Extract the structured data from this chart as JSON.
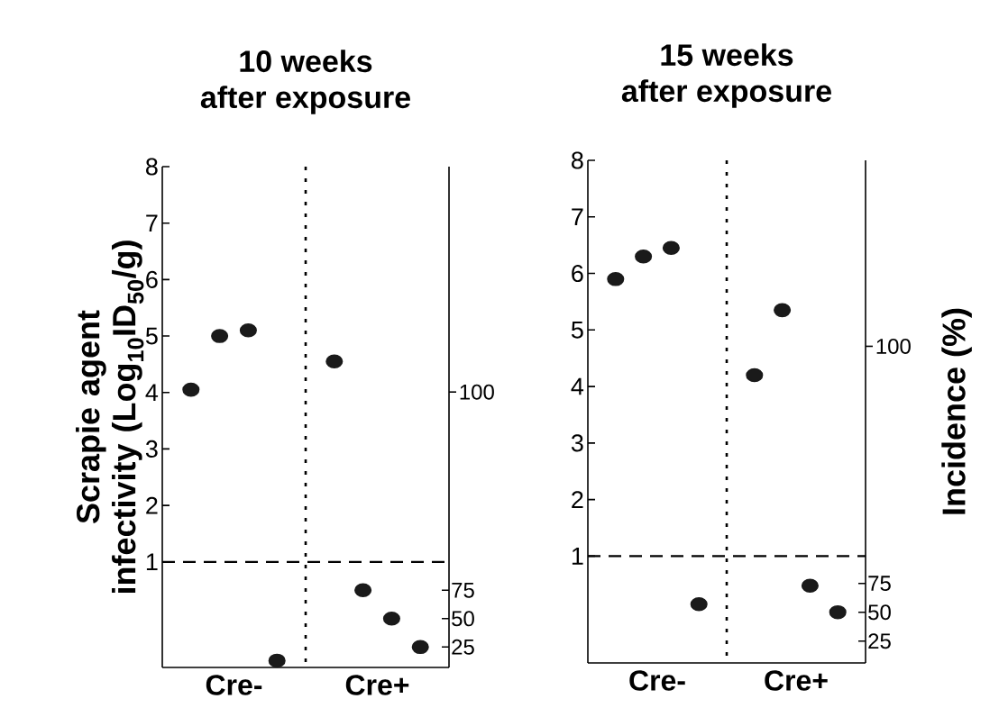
{
  "chart_data": [
    {
      "type": "scatter",
      "title": "10 weeks",
      "subtitle": "after exposure",
      "ylabel": "Scrapie agent infectivity (Log$_{10}$ID$_{50}$/g)",
      "categories": [
        "Cre-",
        "Cre+"
      ],
      "ylim": [
        -0.87,
        8
      ],
      "yticks": [
        1,
        2,
        3,
        4,
        5,
        6,
        7,
        8
      ],
      "y2lim": [
        7,
        448
      ],
      "y2ticks": [
        25,
        50,
        75
      ],
      "series": [
        {
          "color": "#1a1a1a",
          "x": [
            "Cre-",
            "Cre-",
            "Cre-",
            "Cre+"
          ],
          "values": [
            4.05,
            5.0,
            5.1,
            4.55
          ]
        },
        {
          "color": "#1a1a1a",
          "axis": "y2",
          "x": [
            "Cre-",
            "Cre+",
            "Cre+",
            "Cre+"
          ],
          "values": [
            13,
            75,
            50,
            25
          ]
        }
      ],
      "ref_lines": [
        {
          "axis": "y",
          "value": 1,
          "line_style": "dashed"
        }
      ],
      "annotations": [
        "100"
      ]
    },
    {
      "type": "scatter",
      "title": "15 weeks",
      "subtitle": "after exposure",
      "y2label": "Incidence (%)",
      "categories": [
        "Cre-",
        "Cre+"
      ],
      "ylim": [
        -0.89,
        8
      ],
      "yticks": [
        1,
        2,
        3,
        4,
        5,
        6,
        7,
        8
      ],
      "y2lim": [
        6,
        442
      ],
      "y2ticks": [
        25,
        50,
        75
      ],
      "series": [
        {
          "color": "#1a1a1a",
          "x": [
            "Cre-",
            "Cre-",
            "Cre-",
            "Cre+",
            "Cre+"
          ],
          "values": [
            5.9,
            6.3,
            6.45,
            4.2,
            5.35
          ]
        },
        {
          "color": "#1a1a1a",
          "axis": "y2",
          "x": [
            "Cre-",
            "Cre+",
            "Cre+"
          ],
          "values": [
            57,
            73,
            50
          ]
        }
      ],
      "ref_lines": [
        {
          "axis": "y",
          "value": 1,
          "line_style": "dashed"
        }
      ],
      "annotations": [
        "100"
      ]
    }
  ]
}
